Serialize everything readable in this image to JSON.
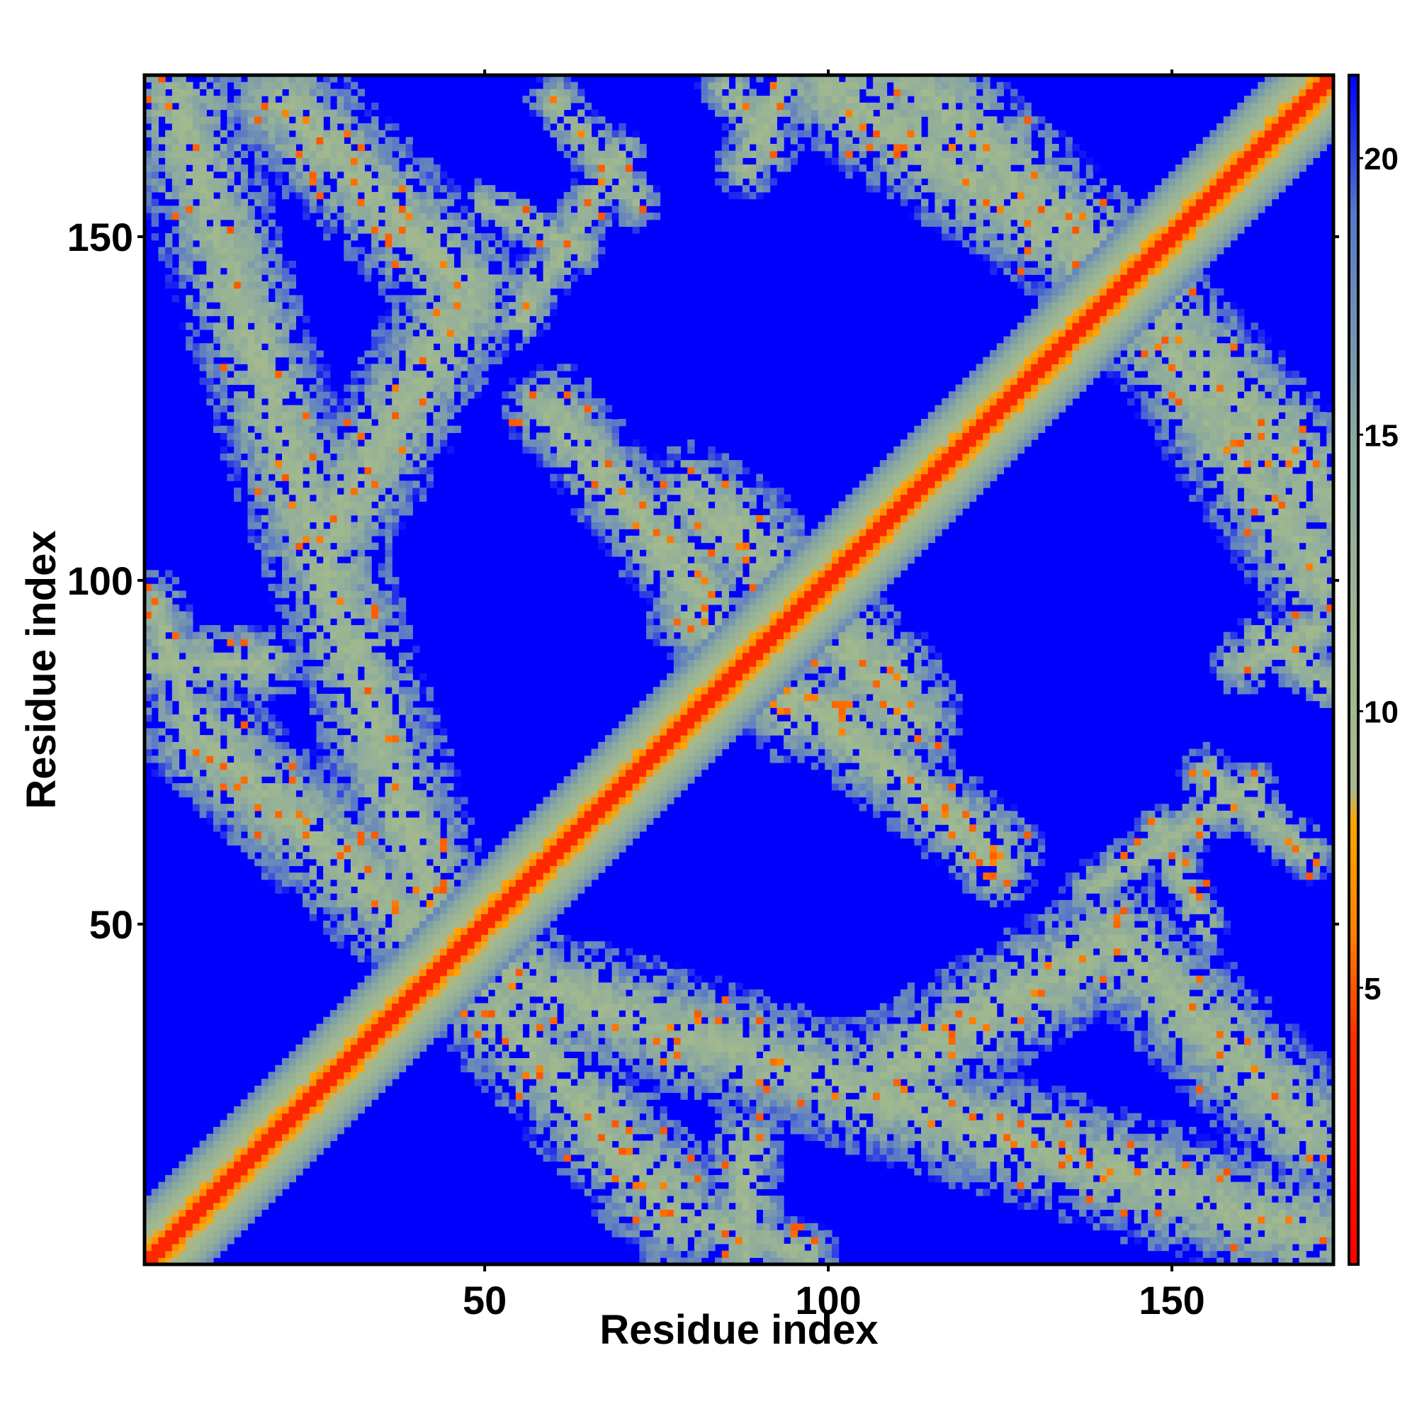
{
  "chart_data": {
    "type": "heatmap",
    "title": "",
    "xlabel": "Residue index",
    "ylabel": "Residue index",
    "n_residues": 173,
    "xlim": [
      1,
      173
    ],
    "ylim": [
      1,
      173
    ],
    "x_ticks": [
      50,
      100,
      150
    ],
    "y_ticks": [
      50,
      100,
      150
    ],
    "colorbar": {
      "ticks": [
        5,
        10,
        15,
        20
      ],
      "range": [
        0,
        21.5
      ],
      "stops": [
        {
          "value": 0,
          "color": "#ff0000"
        },
        {
          "value": 4,
          "color": "#ff2a00"
        },
        {
          "value": 6,
          "color": "#ff8000"
        },
        {
          "value": 8,
          "color": "#ffa500"
        },
        {
          "value": 8.6,
          "color": "#a8b890"
        },
        {
          "value": 11,
          "color": "#9fb88f"
        },
        {
          "value": 15,
          "color": "#8aa8a0"
        },
        {
          "value": 19,
          "color": "#5878c8"
        },
        {
          "value": 21.5,
          "color": "#0000ff"
        }
      ]
    },
    "background_color": "#0000ff",
    "contact_bands": [
      {
        "from": [
          1,
          1
        ],
        "to": [
          173,
          173
        ],
        "half_width": 9.5
      },
      {
        "from": [
          45,
          45
        ],
        "to": [
          5,
          170
        ],
        "half_width": 8
      },
      {
        "from": [
          45,
          45
        ],
        "to": [
          78,
          8
        ],
        "half_width": 8
      },
      {
        "from": [
          78,
          8
        ],
        "to": [
          97,
          2
        ],
        "half_width": 4
      },
      {
        "from": [
          108,
          28
        ],
        "to": [
          142,
          48
        ],
        "half_width": 8
      },
      {
        "from": [
          142,
          48
        ],
        "to": [
          170,
          20
        ],
        "half_width": 8
      },
      {
        "from": [
          142,
          145
        ],
        "to": [
          110,
          175
        ],
        "half_width": 8
      },
      {
        "from": [
          142,
          145
        ],
        "to": [
          172,
          100
        ],
        "half_width": 8
      },
      {
        "from": [
          60,
          125
        ],
        "to": [
          95,
          80
        ],
        "half_width": 6
      },
      {
        "from": [
          80,
          112
        ],
        "to": [
          110,
          85
        ],
        "half_width": 7
      },
      {
        "from": [
          100,
          82
        ],
        "to": [
          125,
          58
        ],
        "half_width": 5
      },
      {
        "from": [
          1,
          88
        ],
        "to": [
          18,
          88
        ],
        "half_width": 5
      },
      {
        "from": [
          160,
          88
        ],
        "to": [
          172,
          93
        ],
        "half_width": 4
      },
      {
        "from": [
          60,
          170
        ],
        "to": [
          72,
          155
        ],
        "half_width": 3.5
      },
      {
        "from": [
          50,
          155
        ],
        "to": [
          64,
          148
        ],
        "half_width": 3
      },
      {
        "from": [
          162,
          70
        ],
        "to": [
          138,
          55
        ],
        "half_width": 3.5
      },
      {
        "from": [
          85,
          172
        ],
        "to": [
          92,
          163
        ],
        "half_width": 3.5
      }
    ]
  }
}
